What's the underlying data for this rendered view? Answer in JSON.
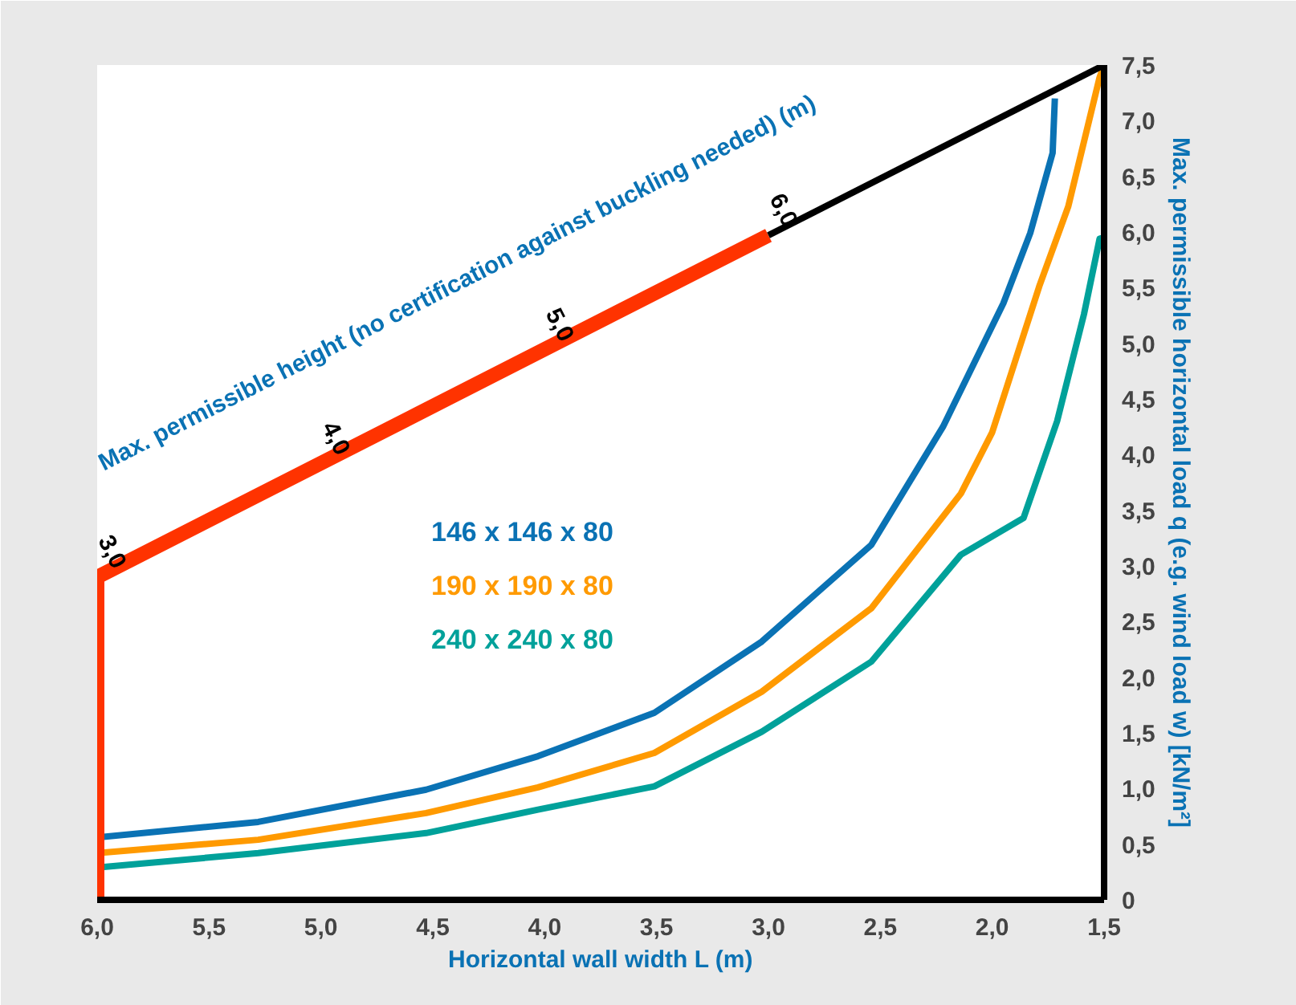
{
  "chart_data": {
    "type": "line",
    "xlabel": "Horizontal wall width L (m)",
    "ylabel": "Max. permissible horizontal load q (e.g. wind load w) [kN/m²]",
    "xlim": [
      6.0,
      1.5
    ],
    "xticks": [
      {
        "value": 6.0,
        "label": "6,0"
      },
      {
        "value": 5.5,
        "label": "5,5"
      },
      {
        "value": 5.0,
        "label": "5,0"
      },
      {
        "value": 4.5,
        "label": "4,5"
      },
      {
        "value": 4.0,
        "label": "4,0"
      },
      {
        "value": 3.5,
        "label": "3,5"
      },
      {
        "value": 3.0,
        "label": "3,0"
      },
      {
        "value": 2.5,
        "label": "2,5"
      },
      {
        "value": 2.0,
        "label": "2,0"
      },
      {
        "value": 1.5,
        "label": "1,5"
      }
    ],
    "ylim": [
      0,
      7.5
    ],
    "yticks": [
      0,
      {
        "value": 0.5,
        "label": "0,5"
      },
      {
        "value": 1.0,
        "label": "1,0"
      },
      {
        "value": 1.5,
        "label": "1,5"
      },
      {
        "value": 2.0,
        "label": "2,0"
      },
      {
        "value": 2.5,
        "label": "2,5"
      },
      {
        "value": 3.0,
        "label": "3,0"
      },
      {
        "value": 3.5,
        "label": "3,5"
      },
      {
        "value": 4.0,
        "label": "4,0"
      },
      {
        "value": 4.5,
        "label": "4,5"
      },
      {
        "value": 5.0,
        "label": "5,0"
      },
      {
        "value": 5.5,
        "label": "5,5"
      },
      {
        "value": 6.0,
        "label": "6,0"
      },
      {
        "value": 6.5,
        "label": "6,5"
      },
      {
        "value": 7.0,
        "label": "7,0"
      },
      {
        "value": 7.5,
        "label": "7,5"
      }
    ],
    "grid": false,
    "legend": "center",
    "marker": "none",
    "series": [
      {
        "name": "146 x 146 x 80",
        "color": "#0a72b4",
        "x": [
          6.0,
          5.28,
          4.53,
          4.03,
          3.51,
          3.03,
          2.54,
          2.22,
          1.95,
          1.83,
          1.73,
          1.72
        ],
        "values": [
          0.56,
          0.7,
          0.99,
          1.29,
          1.68,
          2.32,
          3.19,
          4.25,
          5.36,
          5.99,
          6.71,
          7.2
        ]
      },
      {
        "name": "190 x 190 x 80",
        "color": "#ff9a00",
        "x": [
          6.0,
          5.28,
          4.53,
          4.03,
          3.51,
          3.03,
          2.54,
          2.14,
          2.0,
          1.79,
          1.66,
          1.52,
          1.5
        ],
        "values": [
          0.42,
          0.54,
          0.78,
          1.01,
          1.32,
          1.87,
          2.62,
          3.65,
          4.2,
          5.51,
          6.23,
          7.39,
          7.5
        ]
      },
      {
        "name": "240 x 240 x 80",
        "color": "#00a19a",
        "x": [
          6.0,
          5.28,
          4.53,
          4.03,
          3.51,
          3.03,
          2.54,
          2.14,
          1.86,
          1.71,
          1.59,
          1.52,
          1.5
        ],
        "values": [
          0.29,
          0.42,
          0.6,
          0.81,
          1.02,
          1.51,
          2.14,
          3.1,
          3.43,
          4.3,
          5.26,
          5.94,
          5.95
        ]
      },
      {
        "color": "#ff3300",
        "x": [
          6.0,
          6.0,
          3.0
        ],
        "values": [
          0.0,
          2.9,
          5.97
        ]
      },
      {
        "color": "#000000",
        "x": [
          3.0,
          1.5
        ],
        "values": [
          5.97,
          7.5
        ]
      }
    ],
    "annotations": [
      "Max. permissible height (no certification against buckling needed) (m)",
      {
        "text": "3,0",
        "x": 6.0,
        "y": 2.9
      },
      {
        "text": "4,0",
        "x": 5.0,
        "y": 3.92
      },
      {
        "text": "5,0",
        "x": 4.0,
        "y": 4.94
      },
      {
        "text": "6,0",
        "x": 3.0,
        "y": 5.97
      }
    ]
  }
}
